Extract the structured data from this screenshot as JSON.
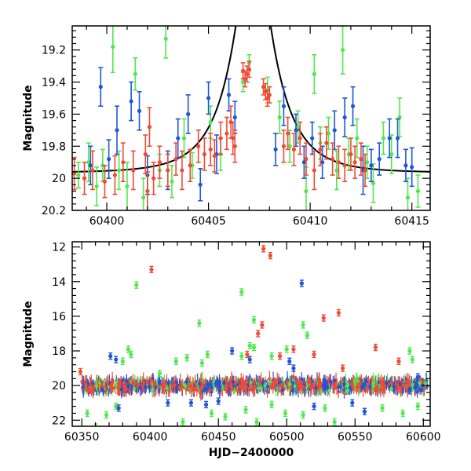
{
  "chart_data": [
    {
      "type": "scatter",
      "title": "",
      "xlabel": "",
      "ylabel": "Magnitude",
      "xlim": [
        60398.3,
        60415.9
      ],
      "ylim": [
        20.2,
        19.05
      ],
      "y_inverted": true,
      "grid": false,
      "legend": "none",
      "xticks": [
        60400,
        60405,
        60410,
        60415
      ],
      "yticks": [
        19.2,
        19.4,
        19.6,
        19.8,
        20,
        20.2
      ],
      "ytick_labels": [
        "19.2",
        "19.4",
        "19.6",
        "19.8",
        "20",
        "20.2"
      ],
      "colors": {
        "blue": "#1f55d8",
        "green": "#4fe84f",
        "red": "#f04a34",
        "model": "#000000"
      },
      "model_curve": {
        "t0": 60407.2,
        "u0": 0.22,
        "tE": 2.1,
        "baseline_mag": 19.965
      },
      "series": [
        {
          "color_key": "green",
          "points": [
            [
              60398.6,
              19.98,
              0.08
            ],
            [
              60399.1,
              19.9,
              0.12
            ],
            [
              60399.5,
              20.05,
              0.12
            ],
            [
              60399.8,
              19.92,
              0.1
            ],
            [
              60400.3,
              19.18,
              0.16
            ],
            [
              60400.6,
              19.95,
              0.12
            ],
            [
              60401.0,
              20.05,
              0.15
            ],
            [
              60401.4,
              19.35,
              0.1
            ],
            [
              60401.8,
              20.12,
              0.12
            ],
            [
              60402.6,
              19.95,
              0.1
            ],
            [
              60402.9,
              19.13,
              0.12
            ],
            [
              60403.2,
              20.02,
              0.1
            ],
            [
              60403.8,
              19.75,
              0.12
            ],
            [
              60404.2,
              19.92,
              0.08
            ],
            [
              60405.1,
              19.65,
              0.1
            ],
            [
              60405.6,
              19.85,
              0.1
            ],
            [
              60406.7,
              19.4,
              0.06
            ],
            [
              60407.0,
              19.28,
              0.05
            ],
            [
              60407.9,
              19.45,
              0.08
            ],
            [
              60408.5,
              19.62,
              0.1
            ],
            [
              60409.0,
              19.8,
              0.1
            ],
            [
              60409.4,
              19.68,
              0.1
            ],
            [
              60409.8,
              20.08,
              0.15
            ],
            [
              60410.2,
              19.35,
              0.12
            ],
            [
              60410.5,
              19.78,
              0.1
            ],
            [
              60410.9,
              19.72,
              0.1
            ],
            [
              60411.3,
              19.95,
              0.12
            ],
            [
              60411.6,
              19.2,
              0.15
            ],
            [
              60411.9,
              19.85,
              0.1
            ],
            [
              60412.3,
              19.75,
              0.12
            ],
            [
              60412.8,
              19.9,
              0.1
            ],
            [
              60413.1,
              20.03,
              0.12
            ],
            [
              60413.6,
              19.75,
              0.1
            ],
            [
              60414.0,
              19.85,
              0.12
            ],
            [
              60414.4,
              19.62,
              0.12
            ],
            [
              60414.8,
              20.12,
              0.12
            ],
            [
              60415.3,
              20.08,
              0.1
            ]
          ]
        },
        {
          "color_key": "blue",
          "points": [
            [
              60399.2,
              19.92,
              0.12
            ],
            [
              60399.7,
              19.43,
              0.12
            ],
            [
              60400.1,
              19.88,
              0.12
            ],
            [
              60400.5,
              19.7,
              0.15
            ],
            [
              60401.2,
              19.52,
              0.12
            ],
            [
              60401.6,
              19.58,
              0.12
            ],
            [
              60402.0,
              19.98,
              0.12
            ],
            [
              60403.0,
              19.95,
              0.12
            ],
            [
              60403.5,
              19.75,
              0.12
            ],
            [
              60404.0,
              19.6,
              0.12
            ],
            [
              60404.6,
              20.04,
              0.1
            ],
            [
              60405.0,
              19.5,
              0.1
            ],
            [
              60405.4,
              19.85,
              0.12
            ],
            [
              60406.0,
              19.48,
              0.1
            ],
            [
              60406.3,
              19.62,
              0.1
            ],
            [
              60408.3,
              19.82,
              0.1
            ],
            [
              60408.7,
              19.55,
              0.12
            ],
            [
              60409.3,
              19.7,
              0.1
            ],
            [
              60409.7,
              19.9,
              0.1
            ],
            [
              60410.1,
              19.75,
              0.1
            ],
            [
              60410.6,
              19.9,
              0.1
            ],
            [
              60411.2,
              19.7,
              0.12
            ],
            [
              60411.7,
              19.62,
              0.12
            ],
            [
              60412.1,
              19.55,
              0.12
            ],
            [
              60412.6,
              19.95,
              0.15
            ],
            [
              60413.0,
              19.92,
              0.1
            ],
            [
              60413.4,
              19.88,
              0.1
            ],
            [
              60413.9,
              19.75,
              0.12
            ],
            [
              60414.3,
              19.75,
              0.12
            ],
            [
              60414.7,
              19.92,
              0.1
            ],
            [
              60415.0,
              19.93,
              0.12
            ]
          ]
        },
        {
          "color_key": "red",
          "points": [
            [
              60398.4,
              19.97,
              0.1
            ],
            [
              60398.9,
              20.0,
              0.1
            ],
            [
              60399.3,
              19.95,
              0.12
            ],
            [
              60399.9,
              20.02,
              0.1
            ],
            [
              60400.4,
              19.98,
              0.12
            ],
            [
              60400.8,
              19.9,
              0.12
            ],
            [
              60401.3,
              19.95,
              0.12
            ],
            [
              60401.9,
              19.85,
              0.12
            ],
            [
              60402.0,
              20.08,
              0.12
            ],
            [
              60402.1,
              19.68,
              0.12
            ],
            [
              60402.3,
              20.0,
              0.1
            ],
            [
              60402.6,
              19.9,
              0.1
            ],
            [
              60403.0,
              19.95,
              0.1
            ],
            [
              60403.4,
              19.88,
              0.1
            ],
            [
              60403.7,
              19.95,
              0.12
            ],
            [
              60404.1,
              19.92,
              0.1
            ],
            [
              60404.5,
              19.8,
              0.1
            ],
            [
              60404.8,
              19.85,
              0.1
            ],
            [
              60405.1,
              19.82,
              0.1
            ],
            [
              60405.3,
              19.86,
              0.1
            ],
            [
              60405.6,
              19.75,
              0.1
            ],
            [
              60405.9,
              19.72,
              0.1
            ],
            [
              60406.1,
              19.65,
              0.1
            ],
            [
              60406.2,
              19.75,
              0.1
            ],
            [
              60406.3,
              19.8,
              0.1
            ],
            [
              60406.7,
              19.33,
              0.05
            ],
            [
              60406.8,
              19.38,
              0.05
            ],
            [
              60406.9,
              19.35,
              0.05
            ],
            [
              60407.0,
              19.32,
              0.05
            ],
            [
              60407.7,
              19.43,
              0.05
            ],
            [
              60407.8,
              19.46,
              0.05
            ],
            [
              60407.9,
              19.5,
              0.05
            ],
            [
              60408.0,
              19.48,
              0.05
            ],
            [
              60408.7,
              19.8,
              0.1
            ],
            [
              60408.9,
              19.72,
              0.1
            ],
            [
              60409.2,
              19.82,
              0.1
            ],
            [
              60409.5,
              19.75,
              0.1
            ],
            [
              60409.8,
              19.88,
              0.1
            ],
            [
              60410.2,
              19.95,
              0.12
            ],
            [
              60410.5,
              19.82,
              0.1
            ],
            [
              60410.8,
              19.78,
              0.1
            ],
            [
              60411.1,
              19.88,
              0.1
            ],
            [
              60411.4,
              19.9,
              0.1
            ],
            [
              60411.7,
              19.92,
              0.1
            ],
            [
              60412.0,
              19.85,
              0.1
            ],
            [
              60412.2,
              19.9,
              0.1
            ],
            [
              60412.5,
              19.88,
              0.1
            ],
            [
              60412.7,
              19.95,
              0.1
            ]
          ]
        }
      ]
    },
    {
      "type": "scatter",
      "title": "",
      "xlabel": "HJD−2400000",
      "ylabel": "Magnitude",
      "xlim": [
        60343,
        60605
      ],
      "ylim": [
        22.35,
        11.7
      ],
      "y_inverted": true,
      "grid": false,
      "legend": "none",
      "xticks": [
        60350,
        60400,
        60450,
        60500,
        60550,
        60600
      ],
      "yticks": [
        12,
        14,
        16,
        18,
        20,
        22
      ],
      "ytick_labels": [
        "12",
        "14",
        "16",
        "18",
        "20",
        "22"
      ],
      "colors": {
        "blue": "#1f55d8",
        "green": "#4fe84f",
        "red": "#f04a34"
      },
      "baseline_band": {
        "x_range": [
          60350,
          60603
        ],
        "mag": 20.0,
        "count": 1100,
        "spread": 0.26
      },
      "outliers": [
        {
          "color_key": "red",
          "points": [
            [
              60349,
              19.2
            ],
            [
              60401,
              13.3
            ],
            [
              60483,
              12.1
            ],
            [
              60488,
              12.5
            ],
            [
              60471,
              18.2
            ],
            [
              60479,
              17.0
            ],
            [
              60482,
              16.5
            ],
            [
              60495,
              18.3
            ],
            [
              60505,
              17.9
            ],
            [
              60520,
              18.2
            ],
            [
              60527,
              16.1
            ],
            [
              60538,
              15.8
            ],
            [
              60541,
              19.0
            ],
            [
              60565,
              17.8
            ],
            [
              60582,
              18.6
            ]
          ]
        },
        {
          "color_key": "green",
          "points": [
            [
              60390,
              14.2
            ],
            [
              60467,
              14.6
            ],
            [
              60476,
              16.2
            ],
            [
              60512,
              16.5
            ],
            [
              60515,
              17.1
            ],
            [
              60436,
              16.4
            ],
            [
              60442,
              18.2
            ],
            [
              60467,
              18.3
            ],
            [
              60473,
              17.7
            ],
            [
              60476,
              17.8
            ],
            [
              60489,
              18.3
            ],
            [
              60500,
              17.9
            ],
            [
              60354,
              21.6
            ],
            [
              60360,
              22.4
            ],
            [
              60368,
              21.7
            ],
            [
              60375,
              21.2
            ],
            [
              60380,
              18.6
            ],
            [
              60384,
              17.9
            ],
            [
              60386,
              18.2
            ],
            [
              60424,
              22.1
            ],
            [
              60445,
              21.6
            ],
            [
              60455,
              21.8
            ],
            [
              60470,
              21.4
            ],
            [
              60478,
              22.1
            ],
            [
              60489,
              21.1
            ],
            [
              60499,
              21.6
            ],
            [
              60512,
              21.7
            ],
            [
              60528,
              21.3
            ],
            [
              60535,
              22.1
            ],
            [
              60570,
              21.3
            ],
            [
              60590,
              18.0
            ],
            [
              60592,
              18.5
            ],
            [
              60596,
              21.2
            ],
            [
              60585,
              21.6
            ],
            [
              60419,
              18.6
            ],
            [
              60427,
              18.4
            ],
            [
              60407,
              19.3
            ],
            [
              60438,
              18.7
            ]
          ]
        },
        {
          "color_key": "blue",
          "points": [
            [
              60511,
              14.1
            ],
            [
              60371,
              18.3
            ],
            [
              60375,
              18.5
            ],
            [
              60460,
              18.0
            ],
            [
              60473,
              18.5
            ],
            [
              60502,
              18.6
            ],
            [
              60505,
              19.0
            ],
            [
              60377,
              21.3
            ],
            [
              60413,
              21.0
            ],
            [
              60430,
              21.0
            ],
            [
              60441,
              21.1
            ],
            [
              60450,
              20.9
            ],
            [
              60520,
              21.2
            ],
            [
              60548,
              21.0
            ],
            [
              60557,
              21.5
            ],
            [
              60590,
              20.3
            ],
            [
              60596,
              19.5
            ]
          ]
        }
      ]
    }
  ]
}
